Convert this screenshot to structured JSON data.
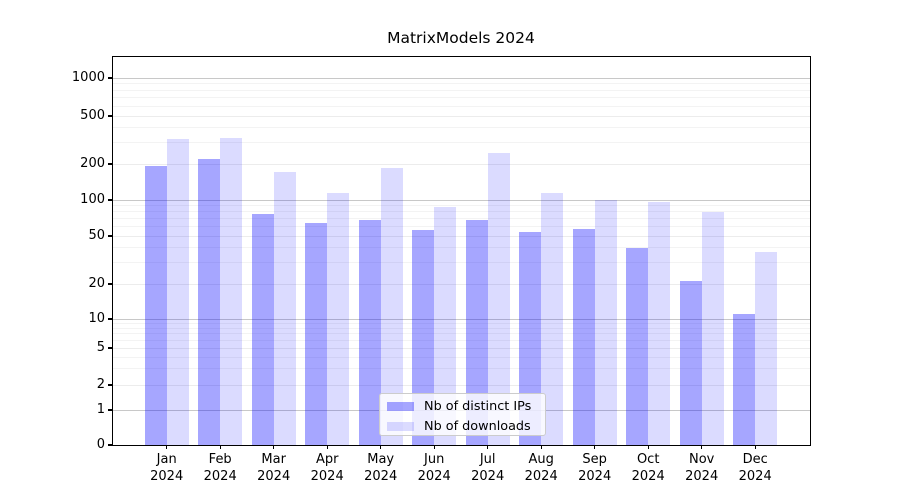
{
  "chart_data": {
    "type": "bar",
    "title": "MatrixModels 2024",
    "categories": [
      "Jan\n2024",
      "Feb\n2024",
      "Mar\n2024",
      "Apr\n2024",
      "May\n2024",
      "Jun\n2024",
      "Jul\n2024",
      "Aug\n2024",
      "Sep\n2024",
      "Oct\n2024",
      "Nov\n2024",
      "Dec\n2024"
    ],
    "series": [
      {
        "name": "Nb of distinct IPs",
        "color": "rgba(0,0,255,0.35)",
        "values": [
          194,
          220,
          76,
          64,
          68,
          56,
          68,
          54,
          57,
          40,
          21,
          11
        ]
      },
      {
        "name": "Nb of downloads",
        "color": "rgba(0,0,255,0.14)",
        "values": [
          320,
          330,
          173,
          115,
          185,
          87,
          245,
          115,
          100,
          97,
          80,
          37
        ]
      }
    ],
    "xlabel": "",
    "ylabel": "",
    "yscale": "symlog",
    "ylim": [
      0,
      1500
    ],
    "yticks": [
      0,
      1,
      2,
      5,
      10,
      20,
      50,
      100,
      200,
      500,
      1000
    ],
    "grid": true,
    "legend_position": "lower center",
    "colors": {
      "bar_distinct_ips": "rgba(0,0,255,0.35)",
      "bar_downloads": "rgba(0,0,255,0.14)",
      "grid_major": "#c8c8c8",
      "grid_mid": "#ececec",
      "grid_minor": "#f3f3f3",
      "axis": "#000000"
    }
  }
}
